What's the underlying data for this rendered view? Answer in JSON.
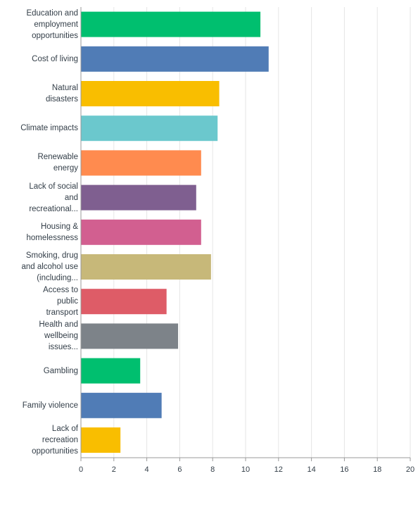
{
  "chart_data": {
    "type": "bar",
    "orientation": "horizontal",
    "categories": [
      [
        "Education and",
        "employment",
        "opportunities"
      ],
      [
        "Cost of living"
      ],
      [
        "Natural",
        "disasters"
      ],
      [
        "Climate impacts"
      ],
      [
        "Renewable",
        "energy"
      ],
      [
        "Lack of social",
        "and",
        "recreational..."
      ],
      [
        "Housing &",
        "homelessness"
      ],
      [
        "Smoking, drug",
        "and alcohol use",
        "(including..."
      ],
      [
        "Access to",
        "public",
        "transport"
      ],
      [
        "Health and",
        "wellbeing",
        "issues..."
      ],
      [
        "Gambling"
      ],
      [
        "Family violence"
      ],
      [
        "Lack of",
        "recreation",
        "opportunities"
      ]
    ],
    "values": [
      10.9,
      11.4,
      8.4,
      8.3,
      7.3,
      7.0,
      7.3,
      7.9,
      5.2,
      5.9,
      3.6,
      4.9,
      2.4
    ],
    "colors": [
      "#00bf6f",
      "#507cb6",
      "#f9be00",
      "#6bc8cd",
      "#ff8b4f",
      "#7f5f90",
      "#d25f90",
      "#c7b879",
      "#de5c67",
      "#7d8389",
      "#00bf6f",
      "#507cb6",
      "#f9be00"
    ],
    "xlim": [
      0,
      20
    ],
    "xticks": [
      0,
      2,
      4,
      6,
      8,
      10,
      12,
      14,
      16,
      18,
      20
    ],
    "grid": true,
    "title": "",
    "xlabel": "",
    "ylabel": ""
  }
}
